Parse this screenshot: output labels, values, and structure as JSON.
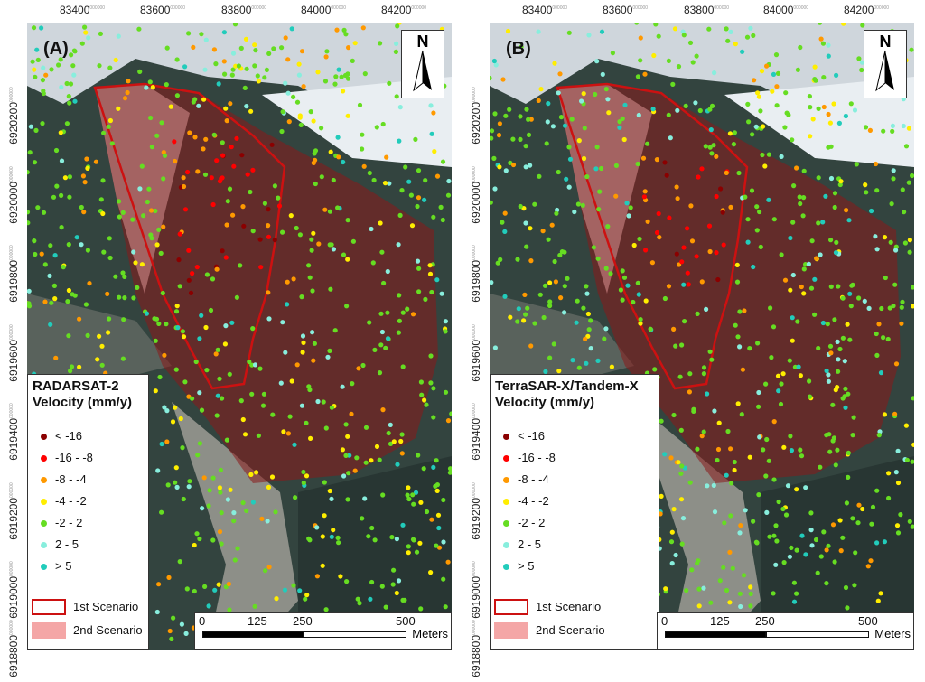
{
  "x_ticks": [
    "83400",
    "83600",
    "83800",
    "84000",
    "84200"
  ],
  "x_tick_suffix": "000000",
  "y_ticks": [
    "6920200",
    "6920000",
    "6919800",
    "6919600",
    "6919400",
    "6919200",
    "6919000",
    "6918800"
  ],
  "y_tick_suffix": "000000",
  "north_label": "N",
  "panels": [
    {
      "label": "(A)",
      "legend_title_line1": "RADARSAT-2",
      "legend_title_line2": "Velocity (mm/y)"
    },
    {
      "label": "(B)",
      "legend_title_line1": "TerraSAR-X/Tandem-X",
      "legend_title_line2": "Velocity (mm/y)"
    }
  ],
  "velocity_classes": [
    {
      "label": "< -16",
      "color": "#8b0000"
    },
    {
      "label": "-16 - -8",
      "color": "#ff0000"
    },
    {
      "label": "-8 - -4",
      "color": "#ff9900"
    },
    {
      "label": "-4 - -2",
      "color": "#ffee00"
    },
    {
      "label": "-2 - 2",
      "color": "#66dd22"
    },
    {
      "label": "2 - 5",
      "color": "#88eedd"
    },
    {
      "label": "> 5",
      "color": "#22ccbb"
    }
  ],
  "scenarios": [
    {
      "label": "1st Scenario",
      "style": "outline",
      "color": "#cc1111"
    },
    {
      "label": "2nd Scenario",
      "style": "fill",
      "color": "#f4a6a6"
    }
  ],
  "scalebar": {
    "ticks": [
      "0",
      "125",
      "250",
      "500"
    ],
    "units": "Meters"
  }
}
